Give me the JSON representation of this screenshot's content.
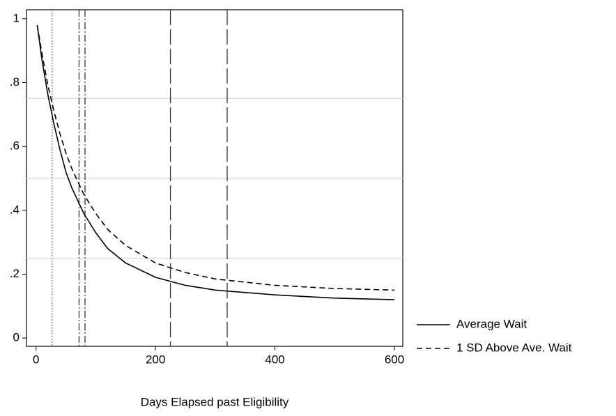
{
  "chart_data": {
    "type": "line",
    "x_label": "Days Elapsed past Eligibility",
    "x": [
      2,
      10,
      20,
      30,
      40,
      50,
      60,
      70,
      80,
      100,
      120,
      150,
      200,
      250,
      300,
      400,
      500,
      600
    ],
    "series": [
      {
        "name": "Average Wait",
        "color": "#000000",
        "dash": "solid",
        "values": [
          0.98,
          0.87,
          0.76,
          0.67,
          0.59,
          0.52,
          0.47,
          0.43,
          0.39,
          0.33,
          0.28,
          0.235,
          0.19,
          0.165,
          0.15,
          0.135,
          0.125,
          0.12
        ]
      },
      {
        "name": "1 SD Above Ave. Wait",
        "color": "#000000",
        "dash": "dashed",
        "values": [
          0.98,
          0.89,
          0.79,
          0.71,
          0.64,
          0.58,
          0.53,
          0.49,
          0.45,
          0.39,
          0.34,
          0.29,
          0.235,
          0.205,
          0.185,
          0.165,
          0.155,
          0.15
        ]
      }
    ],
    "xlim": [
      -16,
      614
    ],
    "xticks": [
      0,
      200,
      400,
      600
    ],
    "ylim": [
      -0.026,
      1.028
    ],
    "yticks": [
      0,
      {
        "value": 0.2,
        "label": ".2"
      },
      {
        "value": 0.4,
        "label": ".4"
      },
      {
        "value": 0.6,
        "label": ".6"
      },
      {
        "value": 0.8,
        "label": ".8"
      },
      1
    ],
    "reference_lines_y": [
      0.25,
      0.5,
      0.75
    ],
    "vertical_lines": [
      {
        "x": 27,
        "style": "dotted"
      },
      {
        "x": 72,
        "style": "dashdot"
      },
      {
        "x": 82,
        "style": "dashdot"
      },
      {
        "x": 225,
        "style": "longdash"
      },
      {
        "x": 320,
        "style": "longdash"
      }
    ],
    "legend": "right"
  }
}
